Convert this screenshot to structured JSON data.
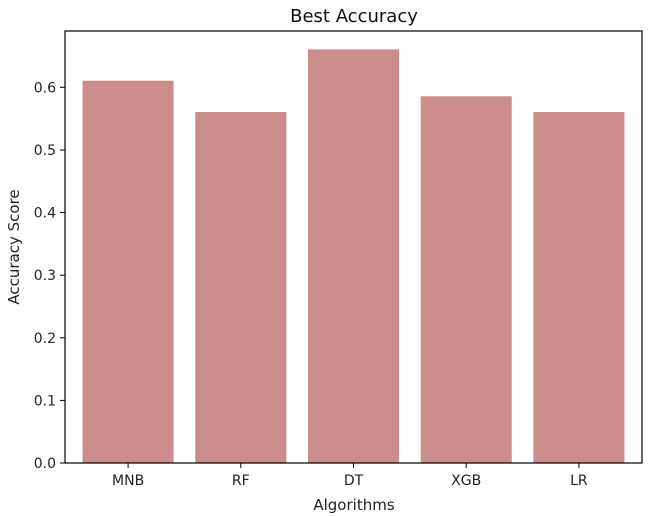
{
  "chart_data": {
    "type": "bar",
    "title": "Best Accuracy",
    "xlabel": "Algorithms",
    "ylabel": "Accuracy Score",
    "categories": [
      "MNB",
      "RF",
      "DT",
      "XGB",
      "LR"
    ],
    "values": [
      0.61,
      0.56,
      0.66,
      0.585,
      0.56
    ],
    "ylim": [
      0,
      0.69
    ],
    "yticks": [
      "0.0",
      "0.1",
      "0.2",
      "0.3",
      "0.4",
      "0.5",
      "0.6"
    ],
    "grid": false,
    "bar_color": "#cc8e8c",
    "bar_edge_color": "#c98a88"
  }
}
